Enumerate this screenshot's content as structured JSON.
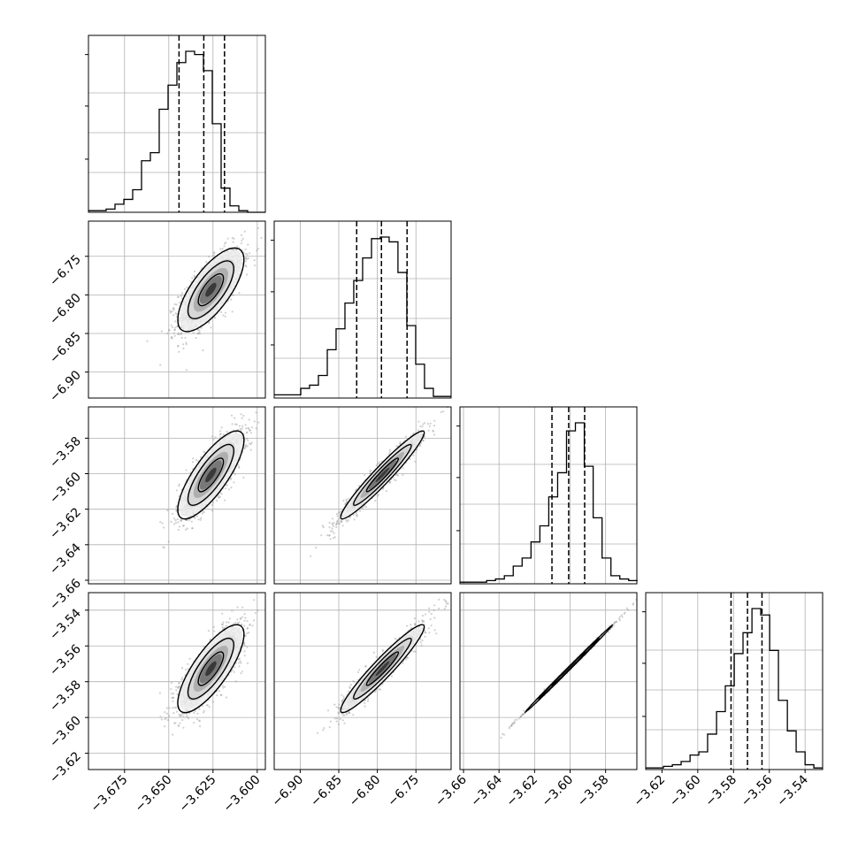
{
  "chart_data": {
    "type": "corner",
    "grid": true,
    "colors": {
      "axes": "#000000",
      "grid": "#b0b0b0",
      "points": "#9a9a9a"
    },
    "params": [
      {
        "ticks": [
          "−3.675",
          "−3.650",
          "−3.625",
          "−3.600"
        ],
        "tick_values": [
          -3.675,
          -3.65,
          -3.625,
          -3.6
        ],
        "range": [
          -3.6954,
          -3.5954
        ],
        "quantiles": [
          -3.6442,
          -3.6302,
          -3.6185
        ],
        "hist": {
          "bins": [
            -3.6954,
            -3.6904,
            -3.6854,
            -3.6804,
            -3.6754,
            -3.6704,
            -3.6654,
            -3.6604,
            -3.6554,
            -3.6504,
            -3.6454,
            -3.6404,
            -3.6354,
            -3.6304,
            -3.6254,
            -3.6204,
            -3.6154,
            -3.6104,
            -3.6054,
            -3.6004,
            -3.5954
          ],
          "counts": [
            0.01,
            0.01,
            0.02,
            0.05,
            0.08,
            0.14,
            0.32,
            0.37,
            0.64,
            0.79,
            0.93,
            1.0,
            0.98,
            0.88,
            0.55,
            0.15,
            0.04,
            0.01,
            0.0,
            0.0
          ]
        }
      },
      {
        "ticks": [
          "−6.90",
          "−6.85",
          "−6.80",
          "−6.75"
        ],
        "tick_values": [
          -6.9,
          -6.85,
          -6.8,
          -6.75
        ],
        "range": [
          -6.9337,
          -6.7044
        ],
        "quantiles": [
          -6.8268,
          -6.7947,
          -6.7615
        ],
        "hist": {
          "bins": [
            -6.9337,
            -6.9222,
            -6.9108,
            -6.8993,
            -6.8879,
            -6.8764,
            -6.8649,
            -6.8535,
            -6.842,
            -6.8306,
            -6.8191,
            -6.8076,
            -6.7962,
            -6.7847,
            -6.7733,
            -6.7618,
            -6.7503,
            -6.7389,
            -6.7274,
            -6.716,
            -6.7044
          ],
          "counts": [
            0.02,
            0.02,
            0.02,
            0.06,
            0.08,
            0.14,
            0.3,
            0.43,
            0.59,
            0.73,
            0.87,
            0.99,
            1.0,
            0.97,
            0.78,
            0.45,
            0.21,
            0.06,
            0.01,
            0.01
          ]
        }
      },
      {
        "ticks": [
          "−3.66",
          "−3.64",
          "−3.62",
          "−3.60",
          "−3.58"
        ],
        "tick_values": [
          -3.66,
          -3.64,
          -3.62,
          -3.6,
          -3.58
        ],
        "range": [
          -3.662,
          -3.5624
        ],
        "quantiles": [
          -3.6102,
          -3.6008,
          -3.5918
        ],
        "hist": {
          "bins": [
            -3.662,
            -3.657,
            -3.652,
            -3.647,
            -3.642,
            -3.637,
            -3.632,
            -3.627,
            -3.622,
            -3.617,
            -3.612,
            -3.607,
            -3.602,
            -3.597,
            -3.592,
            -3.587,
            -3.582,
            -3.577,
            -3.572,
            -3.567,
            -3.562
          ],
          "counts": [
            0.01,
            0.01,
            0.01,
            0.02,
            0.03,
            0.05,
            0.11,
            0.16,
            0.26,
            0.36,
            0.54,
            0.69,
            0.95,
            1.0,
            0.73,
            0.41,
            0.16,
            0.05,
            0.03,
            0.02
          ]
        }
      },
      {
        "ticks": [
          "−3.62",
          "−3.60",
          "−3.58",
          "−3.56",
          "−3.54"
        ],
        "tick_values": [
          -3.62,
          -3.6,
          -3.58,
          -3.56,
          -3.54
        ],
        "range": [
          -3.6291,
          -3.5302
        ],
        "quantiles": [
          -3.5814,
          -3.5722,
          -3.5641
        ],
        "hist": {
          "bins": [
            -3.6291,
            -3.6241,
            -3.6192,
            -3.6142,
            -3.6093,
            -3.6043,
            -3.5994,
            -3.5945,
            -3.5895,
            -3.5846,
            -3.5796,
            -3.5747,
            -3.5697,
            -3.5648,
            -3.5598,
            -3.5549,
            -3.5499,
            -3.545,
            -3.54,
            -3.5351,
            -3.5302
          ],
          "counts": [
            0.01,
            0.01,
            0.02,
            0.03,
            0.05,
            0.09,
            0.11,
            0.22,
            0.36,
            0.52,
            0.72,
            0.85,
            1.0,
            0.96,
            0.74,
            0.43,
            0.24,
            0.11,
            0.03,
            0.01
          ]
        }
      }
    ],
    "pairs": [
      {
        "row": 1,
        "col": 0,
        "center": [
          -3.6262,
          -6.7934
        ],
        "sigma": [
          0.0089,
          0.0258
        ],
        "rho": 0.72
      },
      {
        "row": 2,
        "col": 0,
        "center": [
          -3.6262,
          -3.6007
        ],
        "sigma": [
          0.0089,
          0.0118
        ],
        "rho": 0.79
      },
      {
        "row": 2,
        "col": 1,
        "center": [
          -6.7934,
          -3.6007
        ],
        "sigma": [
          0.0258,
          0.0118
        ],
        "rho": 0.96
      },
      {
        "row": 3,
        "col": 0,
        "center": [
          -3.6262,
          -3.5727
        ],
        "sigma": [
          0.0089,
          0.0117
        ],
        "rho": 0.78
      },
      {
        "row": 3,
        "col": 1,
        "center": [
          -6.7934,
          -3.5727
        ],
        "sigma": [
          0.0258,
          0.0117
        ],
        "rho": 0.95
      },
      {
        "row": 3,
        "col": 2,
        "center": [
          -3.6007,
          -3.5727
        ],
        "sigma": [
          0.0118,
          0.0117
        ],
        "rho": 0.999
      }
    ]
  }
}
